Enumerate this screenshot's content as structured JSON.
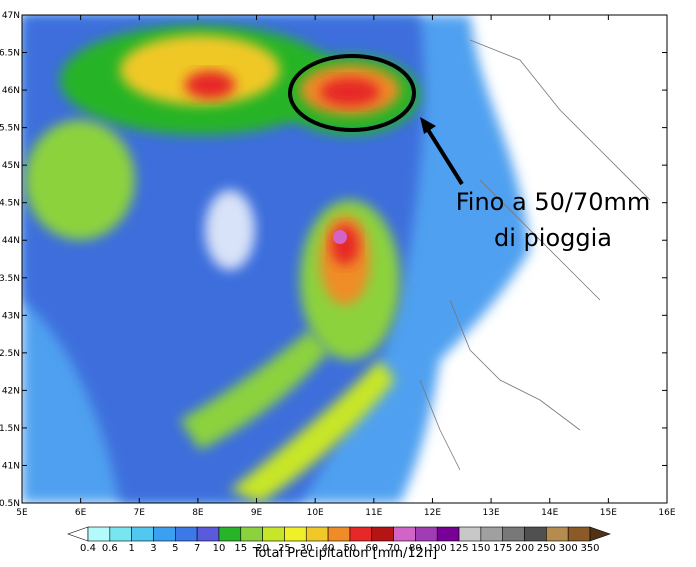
{
  "map": {
    "lat_labels": [
      "47N",
      "6.5N",
      "46N",
      "5.5N",
      "45N",
      "4.5N",
      "44N",
      "3.5N",
      "43N",
      "2.5N",
      "42N",
      "1.5N",
      "41N",
      "0.5N"
    ],
    "lon_labels": [
      "5E",
      "6E",
      "7E",
      "8E",
      "9E",
      "10E",
      "11E",
      "12E",
      "13E",
      "14E",
      "15E",
      "16E"
    ]
  },
  "annotation": {
    "line1": "Fino a 50/70mm",
    "line2": "di pioggia"
  },
  "colorbar": {
    "title": "Total Precipitation [mm/12h]",
    "levels": [
      0.4,
      0.6,
      1,
      3,
      5,
      7,
      10,
      15,
      20,
      25,
      30,
      40,
      50,
      60,
      70,
      80,
      100,
      125,
      150,
      175,
      200,
      250,
      300,
      350
    ],
    "colors": [
      "#ffffff",
      "#b4fafa",
      "#78e6f0",
      "#50c8f0",
      "#3ca0f0",
      "#3c78e6",
      "#5a5adc",
      "#28b428",
      "#8cd23c",
      "#c8e628",
      "#f0f028",
      "#f0c828",
      "#f08c28",
      "#e62828",
      "#b41414",
      "#d264c8",
      "#a03cb4",
      "#780096",
      "#c8c8c8",
      "#a0a0a0",
      "#787878",
      "#505050",
      "#b48c50",
      "#8c5a28",
      "#503214"
    ]
  }
}
